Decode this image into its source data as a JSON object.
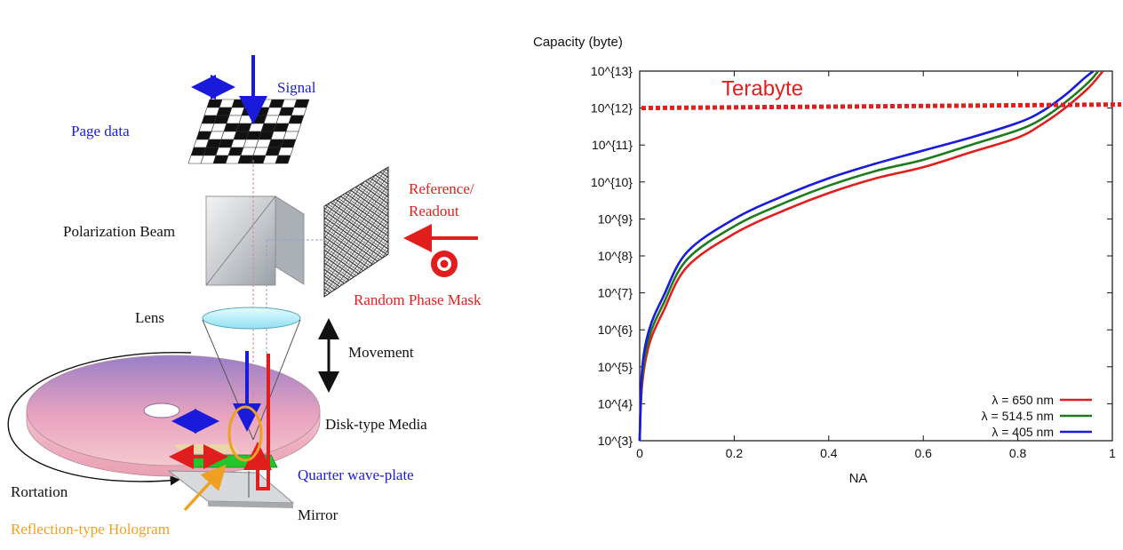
{
  "diagram": {
    "labels": {
      "signal": "Signal",
      "page_data": "Page data",
      "reference_readout_line1": "Reference/",
      "reference_readout_line2": "Readout",
      "polarization_beam": "Polarization Beam",
      "random_phase_mask": "Random Phase Mask",
      "lens": "Lens",
      "movement": "Movement",
      "disk_type_media": "Disk-type Media",
      "quarter_wave_plate": "Quarter wave-plate",
      "rotation": "Rortation",
      "mirror": "Mirror",
      "reflection_type_hologram": "Reflection-type Hologram"
    },
    "colors": {
      "blue_text": "#1a1adb",
      "red_text": "#e01e1e",
      "orange_text": "#f0a020",
      "black_text": "#111111"
    }
  },
  "chart_data": {
    "type": "line",
    "y_axis_title": "Capacity (byte)",
    "xlabel": "NA",
    "xlim": [
      0,
      1
    ],
    "ylim_exponent": [
      3,
      13
    ],
    "x_ticks": [
      "0",
      "0.2",
      "0.4",
      "0.6",
      "0.8",
      "1"
    ],
    "x_tick_values": [
      0,
      0.2,
      0.4,
      0.6,
      0.8,
      1.0
    ],
    "y_ticks": [
      "10^{3}",
      "10^{4}",
      "10^{5}",
      "10^{6}",
      "10^{7}",
      "10^{8}",
      "10^{9}",
      "10^{10}",
      "10^{11}",
      "10^{12}",
      "10^{13}"
    ],
    "y_tick_exponents": [
      3,
      4,
      5,
      6,
      7,
      8,
      9,
      10,
      11,
      12,
      13
    ],
    "log_scale_y": true,
    "grid": false,
    "legend_position": "bottom-right",
    "series": [
      {
        "name": "λ  = 650 nm",
        "color": "#e01e1e",
        "x": [
          0.0,
          0.005,
          0.02,
          0.05,
          0.1,
          0.2,
          0.3,
          0.4,
          0.5,
          0.6,
          0.7,
          0.8,
          0.85,
          0.9,
          0.95,
          0.98
        ],
        "log10_capacity": [
          3.0,
          4.5,
          5.6,
          6.5,
          7.7,
          8.6,
          9.2,
          9.7,
          10.1,
          10.4,
          10.8,
          11.2,
          11.55,
          12.0,
          12.55,
          13.0
        ]
      },
      {
        "name": "λ  = 514.5 nm",
        "color": "#1d7a1d",
        "x": [
          0.0,
          0.005,
          0.02,
          0.05,
          0.1,
          0.2,
          0.3,
          0.4,
          0.5,
          0.6,
          0.7,
          0.8,
          0.85,
          0.9,
          0.95,
          0.97
        ],
        "log10_capacity": [
          3.0,
          4.7,
          5.8,
          6.7,
          7.9,
          8.8,
          9.4,
          9.9,
          10.3,
          10.6,
          11.0,
          11.4,
          11.7,
          12.15,
          12.7,
          13.0
        ]
      },
      {
        "name": "λ  = 405 nm",
        "color": "#1a1adb",
        "x": [
          0.0,
          0.005,
          0.02,
          0.05,
          0.1,
          0.2,
          0.3,
          0.4,
          0.5,
          0.6,
          0.7,
          0.8,
          0.85,
          0.9,
          0.94,
          0.96
        ],
        "log10_capacity": [
          3.0,
          4.9,
          6.0,
          6.9,
          8.1,
          9.0,
          9.6,
          10.1,
          10.5,
          10.85,
          11.2,
          11.6,
          11.9,
          12.35,
          12.8,
          13.0
        ]
      }
    ],
    "annotations": [
      {
        "text": "Terabyte",
        "type": "horizontal-dashed-line",
        "log10_capacity": 12,
        "color": "#e01e1e"
      }
    ]
  }
}
